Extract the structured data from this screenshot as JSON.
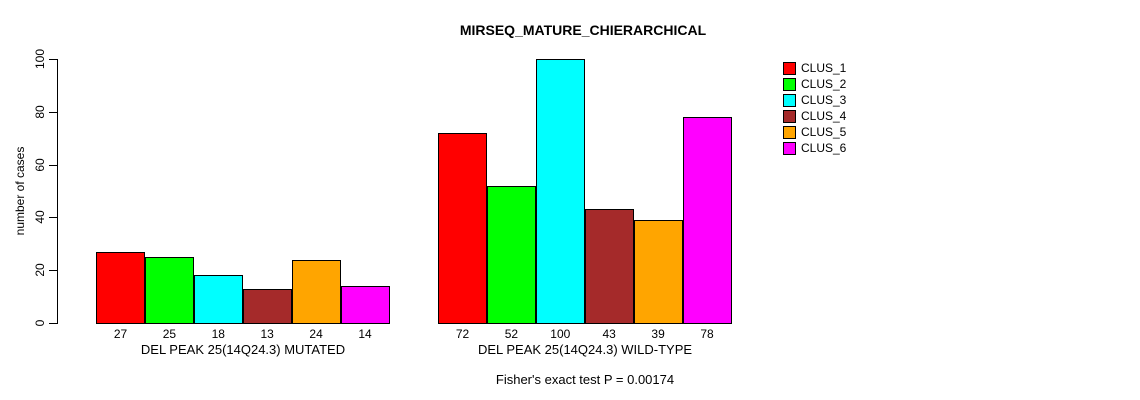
{
  "figure": {
    "title": "MIRSEQ_MATURE_CHIERARCHICAL",
    "ylabel": "number of cases",
    "footer": "Fisher's exact test P = 0.00174"
  },
  "chart_data": {
    "type": "bar",
    "title": "MIRSEQ_MATURE_CHIERARCHICAL",
    "xlabel": "",
    "ylabel": "number of cases",
    "ylim": [
      0,
      100
    ],
    "yticks": [
      0,
      20,
      40,
      60,
      80,
      100
    ],
    "grid": false,
    "legend_position": "right",
    "categories": [
      "CLUS_1",
      "CLUS_2",
      "CLUS_3",
      "CLUS_4",
      "CLUS_5",
      "CLUS_6"
    ],
    "colors": [
      "#FF0000",
      "#00FF00",
      "#00FFFF",
      "#A52A2A",
      "#FFA500",
      "#FF00FF"
    ],
    "groups": [
      {
        "label": "DEL PEAK 25(14Q24.3) MUTATED",
        "values": [
          27,
          25,
          18,
          13,
          24,
          14
        ]
      },
      {
        "label": "DEL PEAK 25(14Q24.3) WILD-TYPE",
        "values": [
          72,
          52,
          100,
          43,
          39,
          78
        ]
      }
    ],
    "annotation": "Fisher's exact test P = 0.00174"
  }
}
